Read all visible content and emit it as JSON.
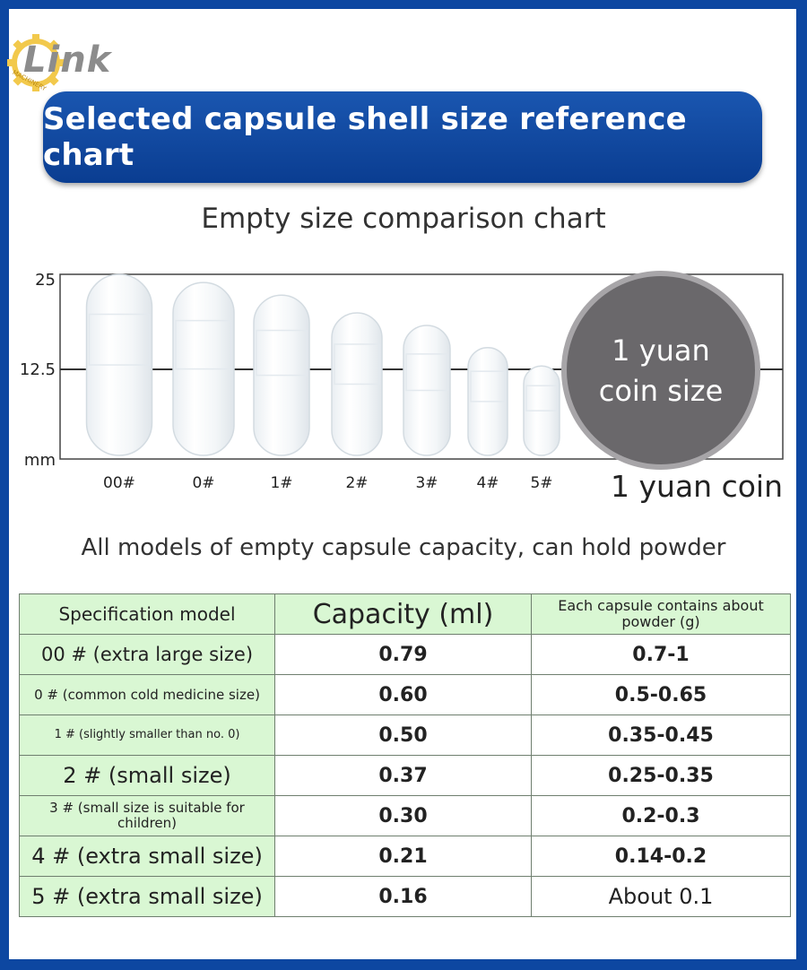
{
  "logo": {
    "text": "Link",
    "small_text": "MACHINERY"
  },
  "banner": {
    "title": "Selected capsule shell size reference chart"
  },
  "subtitle": "Empty size comparison chart",
  "chart_data": {
    "type": "bar",
    "unit_label": "mm",
    "y_ticks": [
      "25",
      "12.5"
    ],
    "ylim": [
      0,
      25
    ],
    "categories": [
      "00#",
      "0#",
      "1#",
      "2#",
      "3#",
      "4#",
      "5#"
    ],
    "values": [
      24.5,
      23.4,
      21.7,
      19.3,
      17.6,
      14.6,
      12.1
    ],
    "coin": {
      "label_line1": "1 yuan",
      "label_line2": "coin size",
      "caption": "1 yuan coin"
    }
  },
  "caption": "All models of empty capsule capacity, can hold powder",
  "table": {
    "headers": [
      "Specification model",
      "Capacity (ml)",
      "Each capsule contains about powder (g)"
    ],
    "rows": [
      {
        "model": "00 # (extra large size)",
        "capacity": "0.79",
        "powder": "0.7-1"
      },
      {
        "model": "0 # (common cold medicine size)",
        "capacity": "0.60",
        "powder": "0.5-0.65"
      },
      {
        "model": "1 # (slightly smaller than no. 0)",
        "capacity": "0.50",
        "powder": "0.35-0.45"
      },
      {
        "model": "2 # (small size)",
        "capacity": "0.37",
        "powder": "0.25-0.35"
      },
      {
        "model": "3 # (small size is suitable for children)",
        "capacity": "0.30",
        "powder": "0.2-0.3"
      },
      {
        "model": "4 # (extra small size)",
        "capacity": "0.21",
        "powder": "0.14-0.2"
      },
      {
        "model": "5 # (extra small size)",
        "capacity": "0.16",
        "powder": "About 0.1"
      }
    ]
  },
  "colors": {
    "frame": "#0d47a1",
    "banner": "#0a3d91",
    "table_header": "#d9f7d3",
    "coin": "#6a686b"
  }
}
